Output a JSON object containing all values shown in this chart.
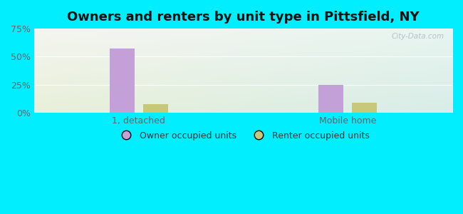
{
  "title": "Owners and renters by unit type in Pittsfield, NY",
  "categories": [
    "1, detached",
    "Mobile home"
  ],
  "owner_values": [
    57,
    25
  ],
  "renter_values": [
    8,
    9
  ],
  "owner_color": "#c4a0d8",
  "renter_color": "#c8c87a",
  "owner_label": "Owner occupied units",
  "renter_label": "Renter occupied units",
  "ylim": [
    0,
    75
  ],
  "yticks": [
    0,
    25,
    50,
    75
  ],
  "ytick_labels": [
    "0%",
    "25%",
    "50%",
    "75%"
  ],
  "bg_outer": "#00eeff",
  "bg_top_left": "#f5f5f0",
  "bg_top_right": "#e8f5f0",
  "bg_bot_left": "#e8f0d8",
  "bg_bot_right": "#d8ede8",
  "watermark": "City-Data.com",
  "bar_width": 0.12,
  "title_fontsize": 13,
  "legend_fontsize": 9,
  "tick_fontsize": 9
}
